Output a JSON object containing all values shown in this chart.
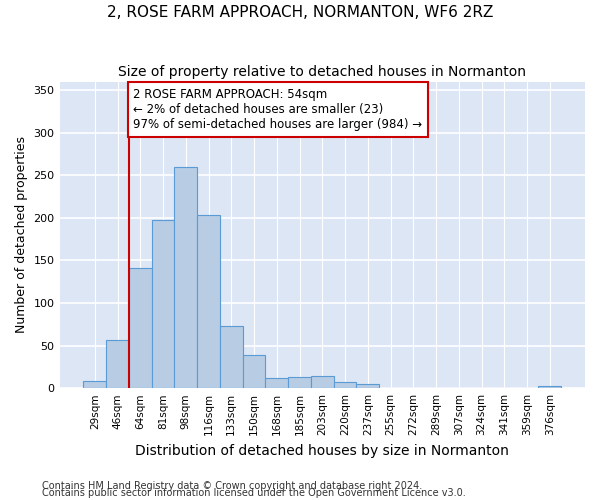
{
  "title": "2, ROSE FARM APPROACH, NORMANTON, WF6 2RZ",
  "subtitle": "Size of property relative to detached houses in Normanton",
  "xlabel": "Distribution of detached houses by size in Normanton",
  "ylabel": "Number of detached properties",
  "categories": [
    "29sqm",
    "46sqm",
    "64sqm",
    "81sqm",
    "98sqm",
    "116sqm",
    "133sqm",
    "150sqm",
    "168sqm",
    "185sqm",
    "203sqm",
    "220sqm",
    "237sqm",
    "255sqm",
    "272sqm",
    "289sqm",
    "307sqm",
    "324sqm",
    "341sqm",
    "359sqm",
    "376sqm"
  ],
  "values": [
    9,
    57,
    141,
    198,
    260,
    203,
    73,
    39,
    12,
    13,
    14,
    7,
    5,
    0,
    0,
    0,
    0,
    0,
    0,
    0,
    3
  ],
  "bar_color": "#b8cce4",
  "bar_edge_color": "#5b9bd5",
  "property_line_x": 1.5,
  "property_line_color": "#cc0000",
  "annotation_text": "2 ROSE FARM APPROACH: 54sqm\n← 2% of detached houses are smaller (23)\n97% of semi-detached houses are larger (984) →",
  "annotation_box_color": "#ffffff",
  "annotation_box_edge_color": "#cc0000",
  "ylim": [
    0,
    360
  ],
  "yticks": [
    0,
    50,
    100,
    150,
    200,
    250,
    300,
    350
  ],
  "footer_line1": "Contains HM Land Registry data © Crown copyright and database right 2024.",
  "footer_line2": "Contains public sector information licensed under the Open Government Licence v3.0.",
  "background_color": "#dce6f5",
  "grid_color": "#ffffff",
  "title_fontsize": 11,
  "subtitle_fontsize": 10,
  "xlabel_fontsize": 10,
  "ylabel_fontsize": 9,
  "footer_fontsize": 7,
  "annotation_fontsize": 8.5
}
